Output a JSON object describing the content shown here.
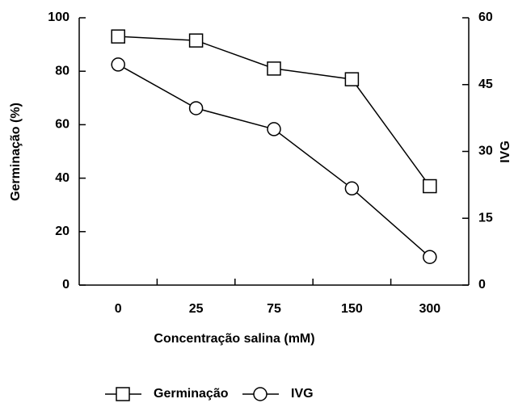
{
  "chart_data": {
    "type": "line",
    "x_label": "Concentração salina (mM)",
    "y_label": "Germinação (%)",
    "y2_label": "IVG",
    "categories": [
      "0",
      "25",
      "75",
      "150",
      "300"
    ],
    "series": [
      {
        "name": "Germinação",
        "marker": "square",
        "color": "#000000",
        "values": [
          93,
          91.5,
          81,
          77,
          37
        ]
      },
      {
        "name": "IVG",
        "marker": "circle",
        "color": "#000000",
        "axis": "y2",
        "values": [
          49.5,
          39.7,
          35,
          21.7,
          6.3
        ]
      }
    ],
    "ylim": [
      0,
      100
    ],
    "yticks": [
      0,
      20,
      40,
      60,
      80,
      100
    ],
    "y2lim": [
      0,
      60
    ],
    "y2ticks": [
      0,
      15,
      30,
      45,
      60
    ],
    "grid": false,
    "legend": "bottom"
  }
}
